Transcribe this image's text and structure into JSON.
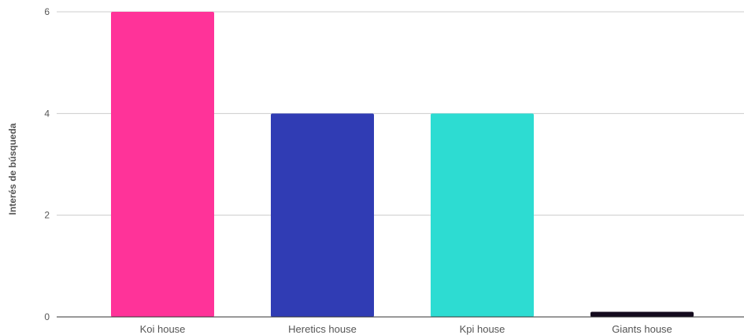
{
  "chart_data": {
    "type": "bar",
    "categories": [
      "Koi house",
      "Heretics house",
      "Kpi house",
      "Giants house"
    ],
    "values": [
      6,
      4,
      4,
      0.1
    ],
    "colors": [
      "#ff3399",
      "#303cb4",
      "#2ddcd2",
      "#140a1e"
    ],
    "xlabel": "",
    "ylabel": "Interés de búsqueda",
    "ylim": [
      0,
      6
    ],
    "yticks": [
      0,
      2,
      4,
      6
    ],
    "grid": true,
    "gridColor": "#cccccc",
    "baselineColor": "#333333"
  }
}
